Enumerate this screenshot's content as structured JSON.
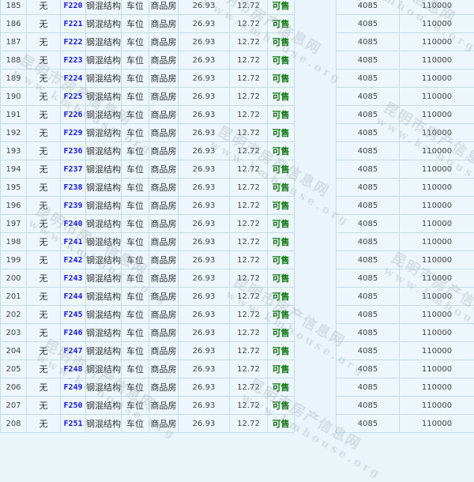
{
  "watermark": {
    "line1": "昆明市房产信息网",
    "line2": "www.kmhouse.org"
  },
  "colors": {
    "background": "#edf7fb",
    "border": "#c5dbe4",
    "code": "#1a1ad6",
    "status": "#0a7a0a"
  },
  "rows": [
    {
      "no": "185",
      "floor": "无",
      "code": "F220",
      "structure": "钢混结构",
      "use": "车位",
      "type": "商品房",
      "area": "26.93",
      "inner": "12.72",
      "status": "可售",
      "price": "4085",
      "total": "110000"
    },
    {
      "no": "186",
      "floor": "无",
      "code": "F221",
      "structure": "钢混结构",
      "use": "车位",
      "type": "商品房",
      "area": "26.93",
      "inner": "12.72",
      "status": "可售",
      "price": "4085",
      "total": "110000"
    },
    {
      "no": "187",
      "floor": "无",
      "code": "F222",
      "structure": "钢混结构",
      "use": "车位",
      "type": "商品房",
      "area": "26.93",
      "inner": "12.72",
      "status": "可售",
      "price": "4085",
      "total": "110000"
    },
    {
      "no": "188",
      "floor": "无",
      "code": "F223",
      "structure": "钢混结构",
      "use": "车位",
      "type": "商品房",
      "area": "26.93",
      "inner": "12.72",
      "status": "可售",
      "price": "4085",
      "total": "110000"
    },
    {
      "no": "189",
      "floor": "无",
      "code": "F224",
      "structure": "钢混结构",
      "use": "车位",
      "type": "商品房",
      "area": "26.93",
      "inner": "12.72",
      "status": "可售",
      "price": "4085",
      "total": "110000"
    },
    {
      "no": "190",
      "floor": "无",
      "code": "F225",
      "structure": "钢混结构",
      "use": "车位",
      "type": "商品房",
      "area": "26.93",
      "inner": "12.72",
      "status": "可售",
      "price": "4085",
      "total": "110000"
    },
    {
      "no": "191",
      "floor": "无",
      "code": "F226",
      "structure": "钢混结构",
      "use": "车位",
      "type": "商品房",
      "area": "26.93",
      "inner": "12.72",
      "status": "可售",
      "price": "4085",
      "total": "110000"
    },
    {
      "no": "192",
      "floor": "无",
      "code": "F229",
      "structure": "钢混结构",
      "use": "车位",
      "type": "商品房",
      "area": "26.93",
      "inner": "12.72",
      "status": "可售",
      "price": "4085",
      "total": "110000"
    },
    {
      "no": "193",
      "floor": "无",
      "code": "F236",
      "structure": "钢混结构",
      "use": "车位",
      "type": "商品房",
      "area": "26.93",
      "inner": "12.72",
      "status": "可售",
      "price": "4085",
      "total": "110000"
    },
    {
      "no": "194",
      "floor": "无",
      "code": "F237",
      "structure": "钢混结构",
      "use": "车位",
      "type": "商品房",
      "area": "26.93",
      "inner": "12.72",
      "status": "可售",
      "price": "4085",
      "total": "110000"
    },
    {
      "no": "195",
      "floor": "无",
      "code": "F238",
      "structure": "钢混结构",
      "use": "车位",
      "type": "商品房",
      "area": "26.93",
      "inner": "12.72",
      "status": "可售",
      "price": "4085",
      "total": "110000"
    },
    {
      "no": "196",
      "floor": "无",
      "code": "F239",
      "structure": "钢混结构",
      "use": "车位",
      "type": "商品房",
      "area": "26.93",
      "inner": "12.72",
      "status": "可售",
      "price": "4085",
      "total": "110000"
    },
    {
      "no": "197",
      "floor": "无",
      "code": "F240",
      "structure": "钢混结构",
      "use": "车位",
      "type": "商品房",
      "area": "26.93",
      "inner": "12.72",
      "status": "可售",
      "price": "4085",
      "total": "110000"
    },
    {
      "no": "198",
      "floor": "无",
      "code": "F241",
      "structure": "钢混结构",
      "use": "车位",
      "type": "商品房",
      "area": "26.93",
      "inner": "12.72",
      "status": "可售",
      "price": "4085",
      "total": "110000"
    },
    {
      "no": "199",
      "floor": "无",
      "code": "F242",
      "structure": "钢混结构",
      "use": "车位",
      "type": "商品房",
      "area": "26.93",
      "inner": "12.72",
      "status": "可售",
      "price": "4085",
      "total": "110000"
    },
    {
      "no": "200",
      "floor": "无",
      "code": "F243",
      "structure": "钢混结构",
      "use": "车位",
      "type": "商品房",
      "area": "26.93",
      "inner": "12.72",
      "status": "可售",
      "price": "4085",
      "total": "110000"
    },
    {
      "no": "201",
      "floor": "无",
      "code": "F244",
      "structure": "钢混结构",
      "use": "车位",
      "type": "商品房",
      "area": "26.93",
      "inner": "12.72",
      "status": "可售",
      "price": "4085",
      "total": "110000"
    },
    {
      "no": "202",
      "floor": "无",
      "code": "F245",
      "structure": "钢混结构",
      "use": "车位",
      "type": "商品房",
      "area": "26.93",
      "inner": "12.72",
      "status": "可售",
      "price": "4085",
      "total": "110000"
    },
    {
      "no": "203",
      "floor": "无",
      "code": "F246",
      "structure": "钢混结构",
      "use": "车位",
      "type": "商品房",
      "area": "26.93",
      "inner": "12.72",
      "status": "可售",
      "price": "4085",
      "total": "110000"
    },
    {
      "no": "204",
      "floor": "无",
      "code": "F247",
      "structure": "钢混结构",
      "use": "车位",
      "type": "商品房",
      "area": "26.93",
      "inner": "12.72",
      "status": "可售",
      "price": "4085",
      "total": "110000"
    },
    {
      "no": "205",
      "floor": "无",
      "code": "F248",
      "structure": "钢混结构",
      "use": "车位",
      "type": "商品房",
      "area": "26.93",
      "inner": "12.72",
      "status": "可售",
      "price": "4085",
      "total": "110000"
    },
    {
      "no": "206",
      "floor": "无",
      "code": "F249",
      "structure": "钢混结构",
      "use": "车位",
      "type": "商品房",
      "area": "26.93",
      "inner": "12.72",
      "status": "可售",
      "price": "4085",
      "total": "110000"
    },
    {
      "no": "207",
      "floor": "无",
      "code": "F250",
      "structure": "钢混结构",
      "use": "车位",
      "type": "商品房",
      "area": "26.93",
      "inner": "12.72",
      "status": "可售",
      "price": "4085",
      "total": "110000"
    },
    {
      "no": "208",
      "floor": "无",
      "code": "F251",
      "structure": "钢混结构",
      "use": "车位",
      "type": "商品房",
      "area": "26.93",
      "inner": "12.72",
      "status": "可售",
      "price": "4085",
      "total": "110000"
    }
  ]
}
